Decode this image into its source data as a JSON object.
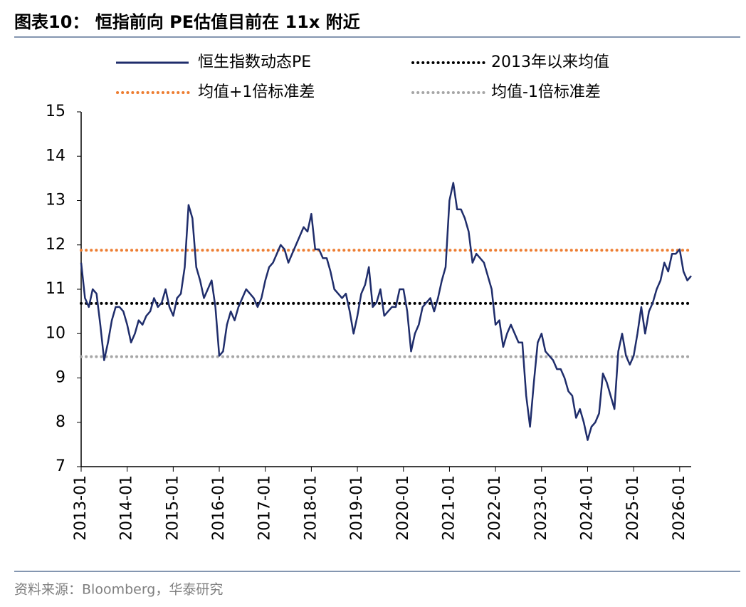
{
  "chart_data": {
    "type": "line",
    "title": "图表10： 恒指前向 PE估值目前在 11x 附近",
    "source": "资料来源：Bloomberg，华泰研究",
    "x": [
      "2013-01",
      "2013-02",
      "2013-03",
      "2013-04",
      "2013-05",
      "2013-06",
      "2013-07",
      "2013-08",
      "2013-09",
      "2013-10",
      "2013-11",
      "2013-12",
      "2014-01",
      "2014-02",
      "2014-03",
      "2014-04",
      "2014-05",
      "2014-06",
      "2014-07",
      "2014-08",
      "2014-09",
      "2014-10",
      "2014-11",
      "2014-12",
      "2015-01",
      "2015-02",
      "2015-03",
      "2015-04",
      "2015-05",
      "2015-06",
      "2015-07",
      "2015-08",
      "2015-09",
      "2015-10",
      "2015-11",
      "2015-12",
      "2016-01",
      "2016-02",
      "2016-03",
      "2016-04",
      "2016-05",
      "2016-06",
      "2016-07",
      "2016-08",
      "2016-09",
      "2016-10",
      "2016-11",
      "2016-12",
      "2017-01",
      "2017-02",
      "2017-03",
      "2017-04",
      "2017-05",
      "2017-06",
      "2017-07",
      "2017-08",
      "2017-09",
      "2017-10",
      "2017-11",
      "2017-12",
      "2018-01",
      "2018-02",
      "2018-03",
      "2018-04",
      "2018-05",
      "2018-06",
      "2018-07",
      "2018-08",
      "2018-09",
      "2018-10",
      "2018-11",
      "2018-12",
      "2019-01",
      "2019-02",
      "2019-03",
      "2019-04",
      "2019-05",
      "2019-06",
      "2019-07",
      "2019-08",
      "2019-09",
      "2019-10",
      "2019-11",
      "2019-12",
      "2020-01",
      "2020-02",
      "2020-03",
      "2020-04",
      "2020-05",
      "2020-06",
      "2020-07",
      "2020-08",
      "2020-09",
      "2020-10",
      "2020-11",
      "2020-12",
      "2021-01",
      "2021-02",
      "2021-03",
      "2021-04",
      "2021-05",
      "2021-06",
      "2021-07",
      "2021-08",
      "2021-09",
      "2021-10",
      "2021-11",
      "2021-12",
      "2022-01",
      "2022-02",
      "2022-03",
      "2022-04",
      "2022-05",
      "2022-06",
      "2022-07",
      "2022-08",
      "2022-09",
      "2022-10",
      "2022-11",
      "2022-12",
      "2023-01",
      "2023-02",
      "2023-03",
      "2023-04",
      "2023-05",
      "2023-06",
      "2023-07",
      "2023-08",
      "2023-09",
      "2023-10",
      "2023-11",
      "2023-12",
      "2024-01",
      "2024-02",
      "2024-03",
      "2024-04",
      "2024-05",
      "2024-06",
      "2024-07",
      "2024-08",
      "2024-09",
      "2024-10",
      "2024-11",
      "2024-12",
      "2025-01",
      "2025-02",
      "2025-03",
      "2025-04",
      "2025-05",
      "2025-06",
      "2025-07",
      "2025-08",
      "2025-09",
      "2025-10",
      "2025-11",
      "2025-12",
      "2026-01",
      "2026-02",
      "2026-03",
      "2026-04"
    ],
    "series": [
      {
        "name": "恒生指数动态PE",
        "color": "#1f2d6b",
        "values": [
          11.6,
          10.8,
          10.6,
          11.0,
          10.9,
          10.2,
          9.4,
          9.8,
          10.3,
          10.6,
          10.6,
          10.5,
          10.2,
          9.8,
          10.0,
          10.3,
          10.2,
          10.4,
          10.5,
          10.8,
          10.6,
          10.7,
          11.0,
          10.6,
          10.4,
          10.8,
          10.9,
          11.5,
          12.9,
          12.6,
          11.5,
          11.2,
          10.8,
          11.0,
          11.2,
          10.6,
          9.5,
          9.6,
          10.2,
          10.5,
          10.3,
          10.6,
          10.8,
          11.0,
          10.9,
          10.8,
          10.6,
          10.8,
          11.2,
          11.5,
          11.6,
          11.8,
          12.0,
          11.9,
          11.6,
          11.8,
          12.0,
          12.2,
          12.4,
          12.3,
          12.7,
          11.9,
          11.9,
          11.7,
          11.7,
          11.4,
          11.0,
          10.9,
          10.8,
          10.9,
          10.5,
          10.0,
          10.4,
          10.9,
          11.1,
          11.5,
          10.6,
          10.7,
          11.0,
          10.4,
          10.5,
          10.6,
          10.6,
          11.0,
          11.0,
          10.5,
          9.6,
          10.0,
          10.2,
          10.6,
          10.7,
          10.8,
          10.5,
          10.8,
          11.2,
          11.5,
          13.0,
          13.4,
          12.8,
          12.8,
          12.6,
          12.3,
          11.6,
          11.8,
          11.7,
          11.6,
          11.3,
          11.0,
          10.2,
          10.3,
          9.7,
          10.0,
          10.2,
          10.0,
          9.8,
          9.8,
          8.6,
          7.9,
          8.9,
          9.8,
          10.0,
          9.6,
          9.5,
          9.4,
          9.2,
          9.2,
          9.0,
          8.7,
          8.6,
          8.1,
          8.3,
          8.0,
          7.6,
          7.9,
          8.0,
          8.2,
          9.1,
          8.9,
          8.6,
          8.3,
          9.6,
          10.0,
          9.5,
          9.3,
          9.5,
          10.0,
          10.6,
          10.0,
          10.5,
          10.7,
          11.0,
          11.2,
          11.6,
          11.4,
          11.8,
          11.8,
          11.9,
          11.4,
          11.2,
          11.3
        ]
      }
    ],
    "reference_lines": [
      {
        "name": "2013年以来均值",
        "value": 10.68,
        "color": "#000000"
      },
      {
        "name": "均值+1倍标准差",
        "value": 11.88,
        "color": "#ed7d31"
      },
      {
        "name": "均值-1倍标准差",
        "value": 9.48,
        "color": "#a6a6a6"
      }
    ],
    "xlim": [
      "2013-01",
      "2026-04"
    ],
    "xticks": [
      "2013-01",
      "2014-01",
      "2015-01",
      "2016-01",
      "2017-01",
      "2018-01",
      "2019-01",
      "2020-01",
      "2021-01",
      "2022-01",
      "2023-01",
      "2024-01",
      "2025-01",
      "2026-01"
    ],
    "ylim": [
      7,
      15
    ],
    "yticks": [
      7,
      8,
      9,
      10,
      11,
      12,
      13,
      14,
      15
    ],
    "grid": false
  }
}
